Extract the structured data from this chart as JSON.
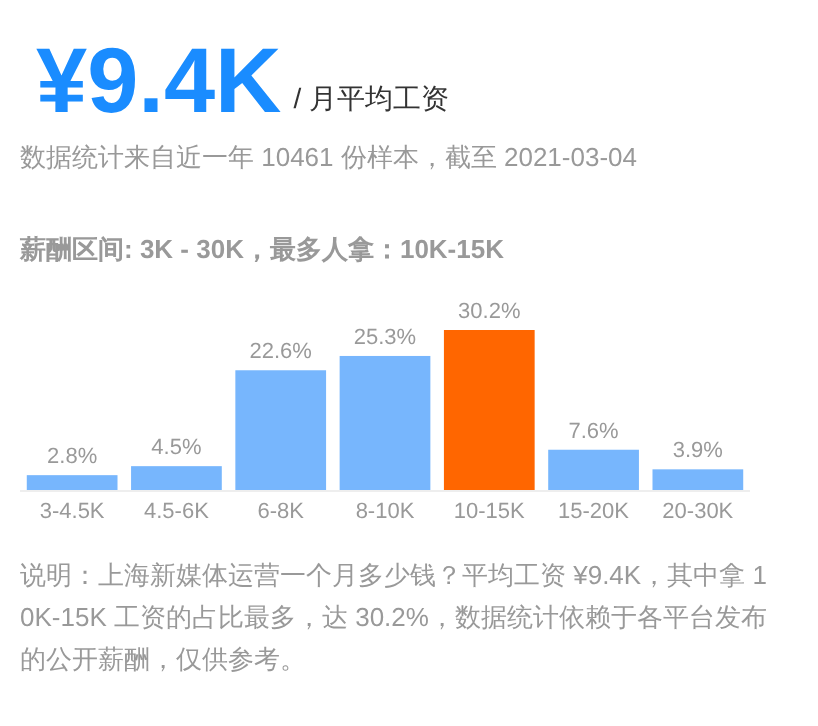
{
  "chart_data": {
    "type": "bar",
    "title": "¥9.4K",
    "subtitle": "/ 月平均工资",
    "annotations": [
      "数据统计来自近一年 10461 份样本，截至 2021-03-04",
      "**薪酬区间: 3K - 30K，最多人拿：10K-15K**",
      "说明：上海新媒体运营一个月多少钱？平均工资 ¥9.4K，其中拿 10K-15K 工资的占比最多，达 30.2%，数据统计依赖于各平台发布的公开薪酬，仅供参考。"
    ],
    "categories": [
      "3-4.5K",
      "4.5-6K",
      "6-8K",
      "8-10K",
      "10-15K",
      "15-20K",
      "20-30K"
    ],
    "values": [
      2.8,
      4.5,
      22.6,
      25.3,
      30.2,
      7.6,
      3.9
    ],
    "value_labels": [
      "2.8%",
      "4.5%",
      "22.6%",
      "25.3%",
      "30.2%",
      "7.6%",
      "3.9%"
    ],
    "colors": [
      "#77b6fd",
      "#77b6fd",
      "#77b6fd",
      "#77b6fd",
      "#ff6600",
      "#77b6fd",
      "#77b6fd"
    ]
  }
}
